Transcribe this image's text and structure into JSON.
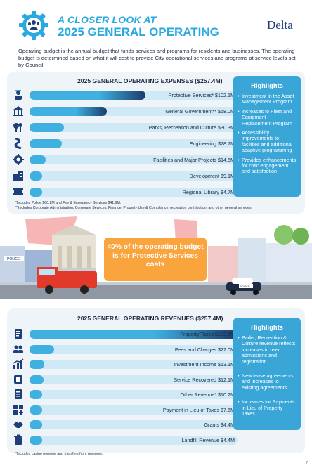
{
  "header": {
    "kicker": "A CLOSER LOOK AT",
    "title": "2025 GENERAL OPERATING",
    "logo_text": "Delta",
    "icon": "group-gear-icon"
  },
  "intro": "Operating budget is the annual budget that funds services and programs for residents and businesses. The operating budget is determined based on what it will cost to provide City operational services and programs at service levels set by Council.",
  "expenses": {
    "title": "2025 GENERAL OPERATING EXPENSES ($257.4M)",
    "max": 183.6,
    "rows": [
      {
        "label": "Protective Services* $102.1M",
        "value": 102.1,
        "icon": "police-officer-icon"
      },
      {
        "label": "General Government** $68.0M",
        "value": 68.0,
        "icon": "government-building-icon"
      },
      {
        "label": "Parks, Recreation and Culture $30.3M",
        "value": 30.3,
        "icon": "parks-trees-icon"
      },
      {
        "label": "Engineering $28.7M",
        "value": 28.7,
        "icon": "road-icon"
      },
      {
        "label": "Facilities and Major Projects $14.5M",
        "value": 14.5,
        "icon": "gear-icon"
      },
      {
        "label": "Development $9.1M",
        "value": 9.1,
        "icon": "development-icon"
      },
      {
        "label": "Regional Library $4.7M",
        "value": 4.7,
        "icon": "books-icon"
      }
    ],
    "highlights_title": "Highlights",
    "highlights": [
      "Investment in the Asset Management Program",
      "Increases to Fleet and Equipment Replacement Program",
      "Accessibility improvements to facilities and additional adaptive programming",
      "Provides enhancements for civic engagement and satisfaction"
    ],
    "notes": [
      "*Includes Police $60.2M and Fire & Emergency Services $41.9M.",
      "**Includes Corporate Administration, Corporate Services, Finance, Property Use & Compliance, recreation contribution, and other general services."
    ]
  },
  "illustration": {
    "callout": "40% of the operating budget is for Protective Services costs",
    "building_sign": "POLICE",
    "car_sign": "POLICE"
  },
  "revenues": {
    "title": "2025 GENERAL OPERATING REVENUES ($257.4M)",
    "max": 183.6,
    "rows": [
      {
        "label": "Property Taxes $183.6M",
        "value": 183.6,
        "icon": "document-icon"
      },
      {
        "label": "Fees and Charges $22.0M",
        "value": 22.0,
        "icon": "people-icon"
      },
      {
        "label": "Investment Income $13.1M",
        "value": 13.1,
        "icon": "growth-chart-icon"
      },
      {
        "label": "Service Recovered $12.1M",
        "value": 12.1,
        "icon": "tools-icon"
      },
      {
        "label": "Other Revenue* $10.2M",
        "value": 10.2,
        "icon": "list-icon"
      },
      {
        "label": "Payment in Lieu of Taxes $7.6M",
        "value": 7.6,
        "icon": "grid-plus-icon"
      },
      {
        "label": "Grants $4.4M",
        "value": 4.4,
        "icon": "handshake-icon"
      },
      {
        "label": "Landfill Revenue $4.4M",
        "value": 4.4,
        "icon": "trash-bin-icon"
      }
    ],
    "highlights_title": "Highlights",
    "highlights": [
      "Parks, Recreation & Culture revenue reflects increases in user admissions and registration",
      "New lease agreements and increases to existing agreements",
      "Increases for Payments in Lieu of Property Taxes"
    ],
    "notes": [
      "*Includes casino revenue and transfers from reserves."
    ]
  },
  "colors": {
    "accent": "#29a9df",
    "bar_dark": "#1a3d6b",
    "bar_light": "#3fb0e0",
    "track": "#cfe9f6",
    "highlight_box": "#3aa6d8",
    "callout": "#f9a43d"
  },
  "page_number": "7"
}
